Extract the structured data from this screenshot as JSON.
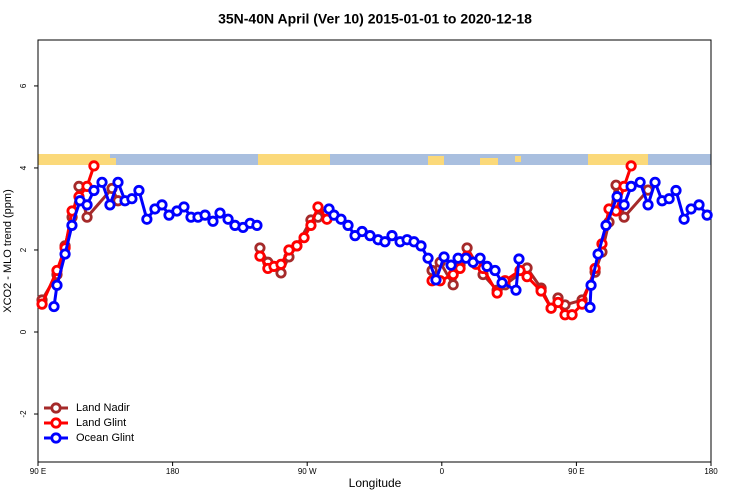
{
  "chart_data": {
    "type": "line",
    "title": "35N-40N April (Ver 10)   2015-01-01 to 2020-12-18",
    "x_label": "Longitude",
    "y_label": "XCO2 - MLO trend (ppm)",
    "xlim": [
      90,
      540
    ],
    "xticks": [
      {
        "value": 90,
        "label": "90 E"
      },
      180,
      {
        "value": 270,
        "label": "90 W"
      },
      {
        "value": 360,
        "label": "0"
      },
      {
        "value": 450,
        "label": "90 E"
      },
      {
        "value": 540,
        "label": "180"
      }
    ],
    "ylim": [
      -3.17,
      7.12
    ],
    "yticks": [
      -2,
      0,
      2,
      4,
      6
    ],
    "legend": "bottom-left",
    "series": [
      {
        "name": "Land Nadir",
        "color": "#a52a2a",
        "x": [
          92.7,
          102.7,
          108.1,
          112.8,
          117.4,
          122.8,
          139.5,
          143.5,
          null,
          238.4,
          243.7,
          252.5,
          257.8,
          263.1,
          272.5,
          277.2,
          283.2,
          null,
          353.5,
          358.9,
          367.6,
          372.2,
          376.9,
          387.6,
          397.0,
          402.3,
          417.0,
          426.4,
          433.1,
          437.7,
          442.4,
          453.8,
          462.5,
          467.1,
          471.8,
          476.5,
          481.9,
          497.9
        ],
        "values": [
          0.78,
          1.4,
          2.1,
          2.8,
          3.55,
          2.8,
          3.5,
          3.2,
          null,
          2.05,
          1.7,
          1.44,
          1.83,
          2.1,
          2.73,
          2.8,
          2.9,
          null,
          1.5,
          1.7,
          1.15,
          1.63,
          2.05,
          1.4,
          1.02,
          1.15,
          1.56,
          1.07,
          0.58,
          0.83,
          0.66,
          0.78,
          1.46,
          1.95,
          2.68,
          3.58,
          2.8,
          3.46
        ]
      },
      {
        "name": "Land Glint",
        "color": "#ff0000",
        "x": [
          92.7,
          102.7,
          108.1,
          112.8,
          117.4,
          122.8,
          127.4,
          null,
          238.4,
          243.7,
          247.8,
          252.5,
          257.8,
          263.1,
          267.9,
          272.5,
          277.2,
          283.2,
          null,
          353.5,
          358.9,
          367.6,
          372.2,
          376.9,
          382.9,
          387.6,
          397.0,
          402.3,
          412.3,
          417.0,
          426.4,
          433.1,
          437.7,
          442.4,
          447.1,
          453.8,
          462.5,
          467.1,
          471.8,
          476.5,
          481.9,
          486.6
        ],
        "values": [
          0.68,
          1.5,
          2.05,
          2.95,
          3.3,
          3.55,
          4.05,
          null,
          1.85,
          1.55,
          1.6,
          1.65,
          2.0,
          2.1,
          2.3,
          2.6,
          3.05,
          2.75,
          null,
          1.25,
          1.25,
          1.4,
          1.55,
          1.85,
          1.65,
          1.55,
          0.95,
          1.25,
          1.5,
          1.35,
          1.0,
          0.58,
          0.72,
          0.42,
          0.42,
          0.68,
          1.55,
          2.15,
          3.0,
          2.95,
          3.55,
          4.05
        ]
      },
      {
        "name": "Ocean Glint",
        "color": "#0000ff",
        "x": [
          100.7,
          102.7,
          108.1,
          112.7,
          118.1,
          122.8,
          127.4,
          132.8,
          138.1,
          143.5,
          148.2,
          152.8,
          157.5,
          162.8,
          168.2,
          172.9,
          177.6,
          182.9,
          187.6,
          192.3,
          197.0,
          201.7,
          207.0,
          211.7,
          217.1,
          221.7,
          227.1,
          231.8,
          236.4,
          null,
          284.6,
          287.9,
          292.6,
          297.3,
          302.0,
          306.7,
          312.0,
          317.4,
          322.0,
          326.7,
          332.1,
          336.8,
          341.4,
          346.1,
          350.8,
          356.1,
          361.5,
          366.2,
          370.9,
          376.2,
          380.9,
          385.6,
          390.2,
          395.6,
          400.3,
          409.6,
          411.6,
          null,
          459.1,
          459.8,
          464.5,
          469.8,
          477.2,
          481.9,
          486.6,
          492.6,
          497.9,
          502.6,
          507.3,
          512.0,
          516.6,
          522.0,
          526.7,
          532.0,
          537.4
        ],
        "values": [
          0.62,
          1.14,
          1.9,
          2.6,
          3.2,
          3.1,
          3.45,
          3.65,
          3.1,
          3.65,
          3.2,
          3.25,
          3.45,
          2.75,
          3.0,
          3.1,
          2.85,
          2.95,
          3.05,
          2.8,
          2.8,
          2.85,
          2.7,
          2.9,
          2.75,
          2.6,
          2.55,
          2.65,
          2.6,
          null,
          3.0,
          2.85,
          2.75,
          2.6,
          2.35,
          2.45,
          2.35,
          2.25,
          2.2,
          2.35,
          2.2,
          2.25,
          2.2,
          2.1,
          1.8,
          1.27,
          1.83,
          1.63,
          1.8,
          1.8,
          1.7,
          1.8,
          1.6,
          1.5,
          1.2,
          1.02,
          1.78,
          null,
          0.6,
          1.14,
          1.9,
          2.6,
          3.3,
          3.1,
          3.55,
          3.65,
          3.1,
          3.65,
          3.2,
          3.25,
          3.45,
          2.75,
          3.0,
          3.1,
          2.85
        ]
      }
    ]
  }
}
